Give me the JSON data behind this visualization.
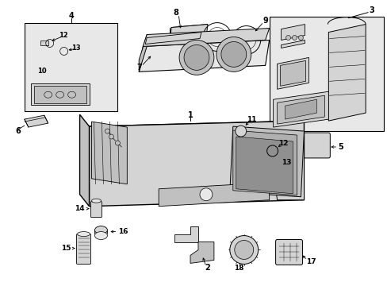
{
  "bg_color": "#ffffff",
  "lc": "#000000",
  "fill_light": "#e8e8e8",
  "fill_mid": "#d4d4d4",
  "fill_dark": "#c0c0c0",
  "fig_width": 4.89,
  "fig_height": 3.6,
  "dpi": 100
}
